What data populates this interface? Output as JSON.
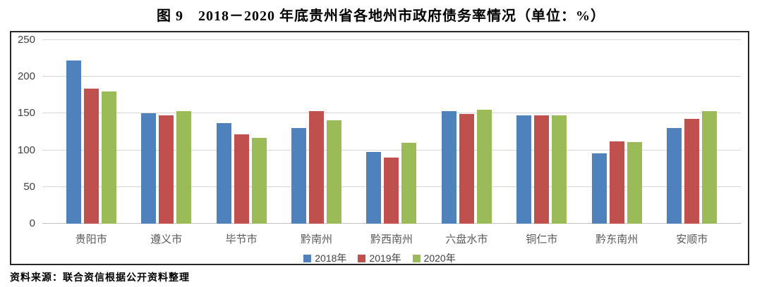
{
  "title": "图 9　2018－2020 年底贵州省各地州市政府债务率情况（单位：%）",
  "source_note": "资料来源：联合资信根据公开资料整理",
  "colors": {
    "series_2018": "#4f81bd",
    "series_2019": "#c0504d",
    "series_2020": "#9bbb59",
    "gridline": "#d6d6d6",
    "axis_text": "#595959",
    "tick_text": "#404040",
    "border": "#262626"
  },
  "chart_data": {
    "type": "bar",
    "title": "图 9　2018－2020 年底贵州省各地州市政府债务率情况（单位：%）",
    "unit": "%",
    "categories": [
      "贵阳市",
      "遵义市",
      "毕节市",
      "黔南州",
      "黔西南州",
      "六盘水市",
      "铜仁市",
      "黔东南州",
      "安顺市"
    ],
    "series": [
      {
        "name": "2018年",
        "color": "#4f81bd",
        "values": [
          222,
          150,
          137,
          130,
          98,
          153,
          148,
          96,
          130
        ]
      },
      {
        "name": "2019年",
        "color": "#c0504d",
        "values": [
          184,
          148,
          122,
          153,
          90,
          149,
          148,
          112,
          143
        ]
      },
      {
        "name": "2020年",
        "color": "#9bbb59",
        "values": [
          180,
          153,
          117,
          141,
          110,
          155,
          148,
          111,
          153
        ]
      }
    ],
    "xlabel": "",
    "ylabel": "",
    "ylim": [
      0,
      250
    ],
    "yticks": [
      0,
      50,
      100,
      150,
      200,
      250
    ],
    "grid": true,
    "legend_position": "bottom"
  }
}
